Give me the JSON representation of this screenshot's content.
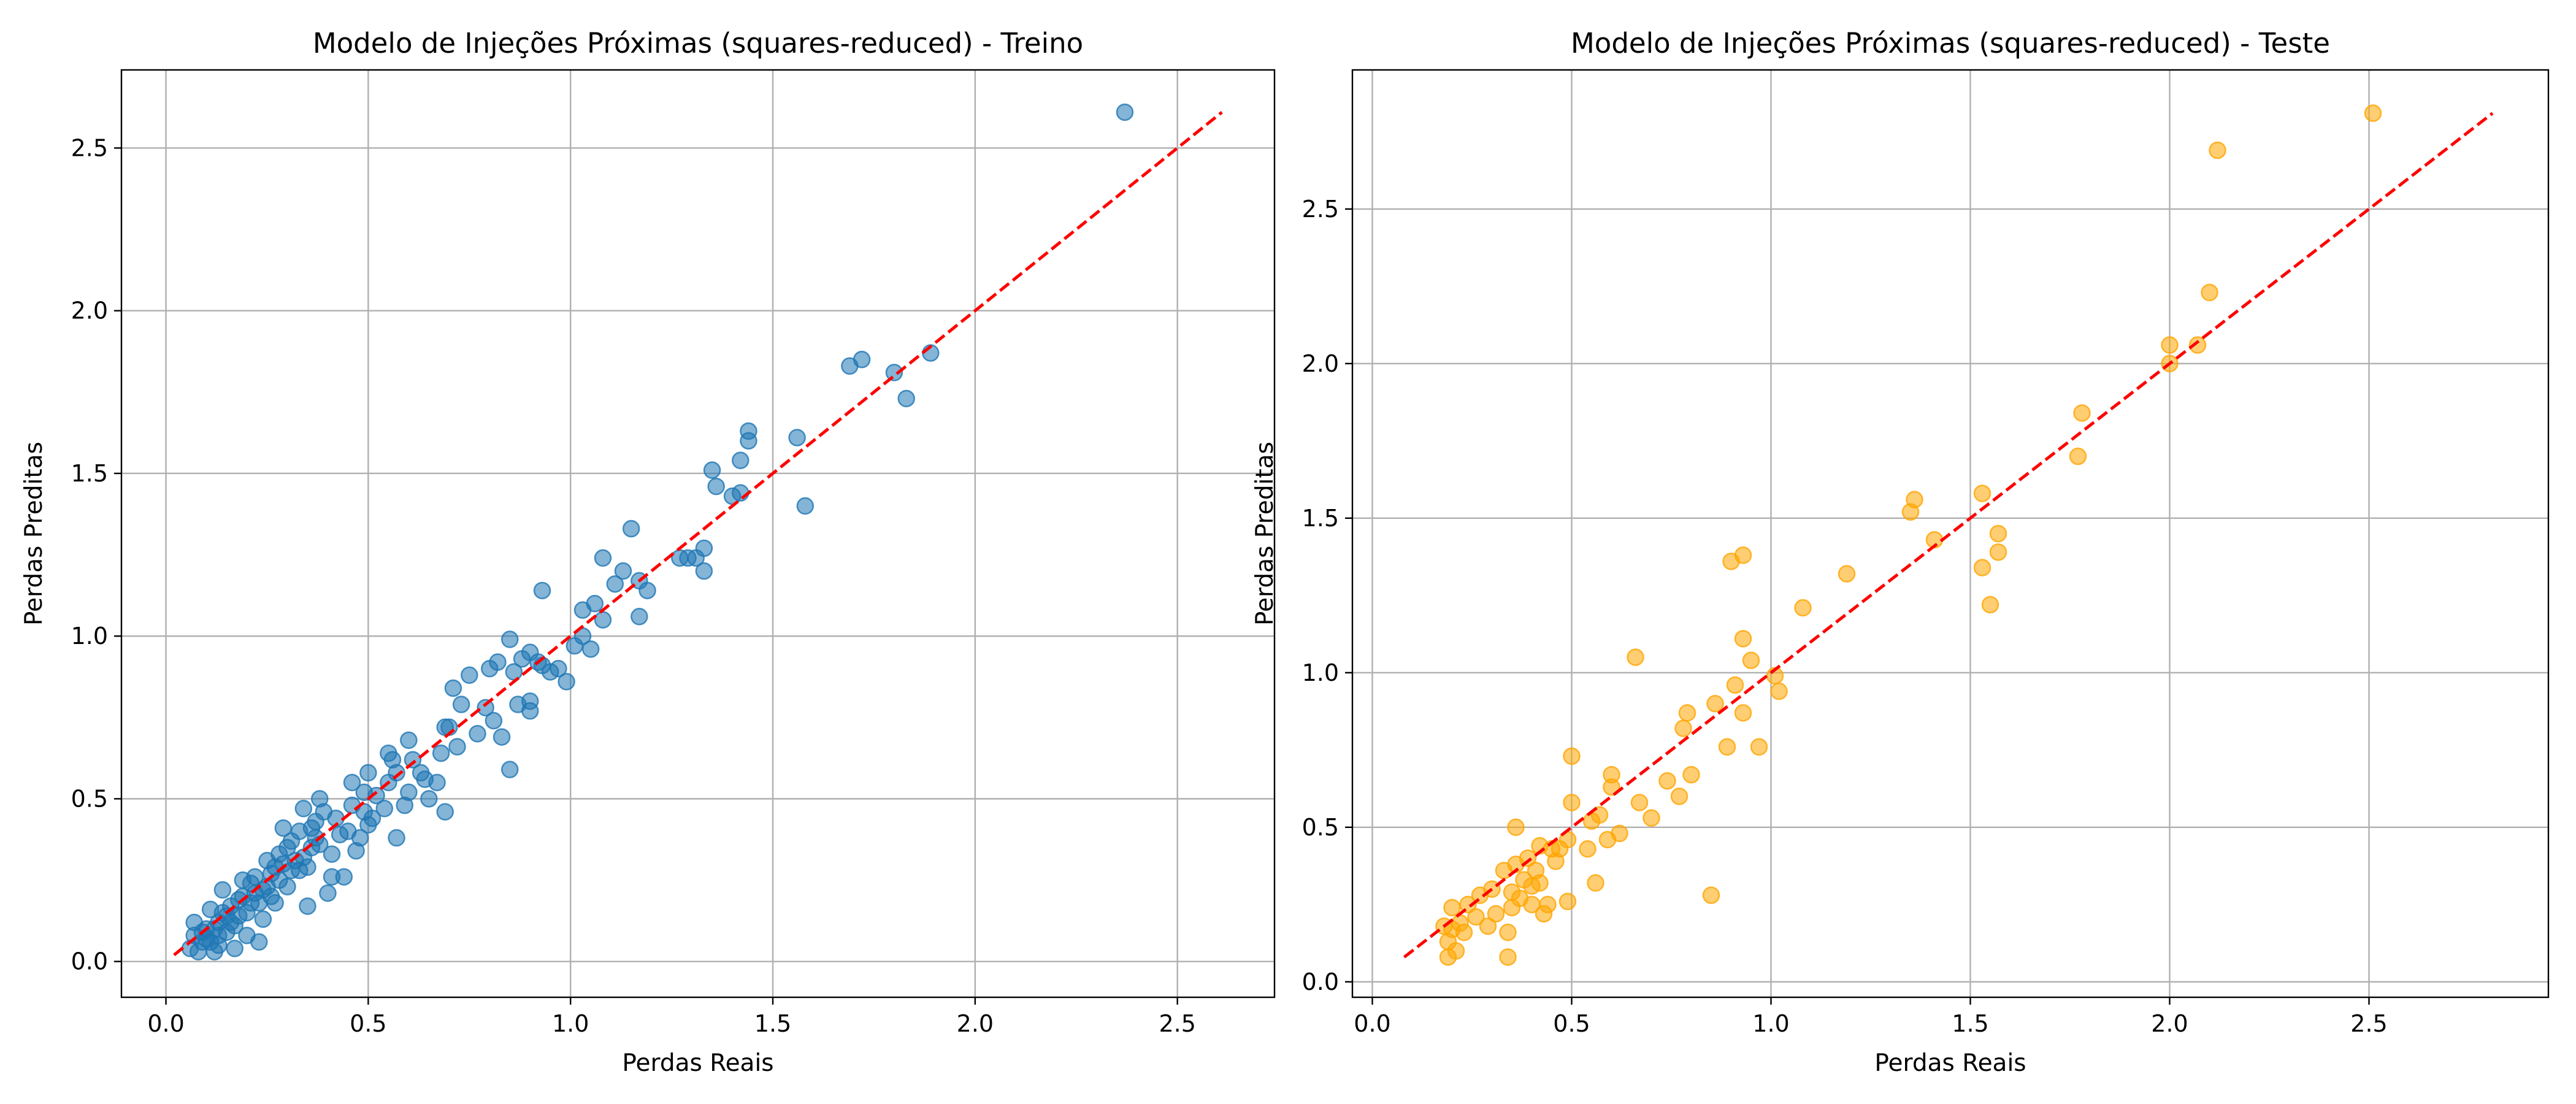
{
  "chart_data": [
    {
      "type": "scatter",
      "title": "Modelo de Injeções Próximas (squares-reduced) - Treino",
      "xlabel": "Perdas Reais",
      "ylabel": "Perdas Preditas",
      "xlim": [
        -0.11,
        2.74
      ],
      "ylim": [
        -0.11,
        2.74
      ],
      "xticks": [
        "0.0",
        "0.5",
        "1.0",
        "1.5",
        "2.0",
        "2.5"
      ],
      "yticks": [
        "0.0",
        "0.5",
        "1.0",
        "1.5",
        "2.0",
        "2.5"
      ],
      "grid": true,
      "point_color": "#1f77b4",
      "reference_line": {
        "x": [
          0.02,
          2.61
        ],
        "y": [
          0.02,
          2.61
        ],
        "color": "#ff0000",
        "style": "dashed"
      },
      "points": [
        [
          2.37,
          2.61
        ],
        [
          1.89,
          1.87
        ],
        [
          1.83,
          1.73
        ],
        [
          1.8,
          1.81
        ],
        [
          1.72,
          1.85
        ],
        [
          1.69,
          1.83
        ],
        [
          1.58,
          1.4
        ],
        [
          1.56,
          1.61
        ],
        [
          1.44,
          1.63
        ],
        [
          1.44,
          1.6
        ],
        [
          1.42,
          1.54
        ],
        [
          1.42,
          1.44
        ],
        [
          1.4,
          1.43
        ],
        [
          1.36,
          1.46
        ],
        [
          1.35,
          1.51
        ],
        [
          1.33,
          1.27
        ],
        [
          1.33,
          1.2
        ],
        [
          1.31,
          1.24
        ],
        [
          1.29,
          1.24
        ],
        [
          1.27,
          1.24
        ],
        [
          1.19,
          1.14
        ],
        [
          1.17,
          1.17
        ],
        [
          1.17,
          1.06
        ],
        [
          1.15,
          1.33
        ],
        [
          1.13,
          1.2
        ],
        [
          1.11,
          1.16
        ],
        [
          1.08,
          1.24
        ],
        [
          1.08,
          1.05
        ],
        [
          1.06,
          1.1
        ],
        [
          1.05,
          0.96
        ],
        [
          1.03,
          1.08
        ],
        [
          1.03,
          1.0
        ],
        [
          1.01,
          0.97
        ],
        [
          0.99,
          0.86
        ],
        [
          0.97,
          0.9
        ],
        [
          0.95,
          0.89
        ],
        [
          0.93,
          1.14
        ],
        [
          0.93,
          0.91
        ],
        [
          0.92,
          0.92
        ],
        [
          0.9,
          0.95
        ],
        [
          0.9,
          0.8
        ],
        [
          0.9,
          0.77
        ],
        [
          0.88,
          0.93
        ],
        [
          0.87,
          0.79
        ],
        [
          0.86,
          0.89
        ],
        [
          0.85,
          0.99
        ],
        [
          0.85,
          0.59
        ],
        [
          0.83,
          0.69
        ],
        [
          0.82,
          0.92
        ],
        [
          0.81,
          0.74
        ],
        [
          0.8,
          0.9
        ],
        [
          0.79,
          0.78
        ],
        [
          0.77,
          0.7
        ],
        [
          0.75,
          0.88
        ],
        [
          0.73,
          0.79
        ],
        [
          0.72,
          0.66
        ],
        [
          0.71,
          0.84
        ],
        [
          0.7,
          0.72
        ],
        [
          0.69,
          0.72
        ],
        [
          0.68,
          0.64
        ],
        [
          0.69,
          0.46
        ],
        [
          0.67,
          0.55
        ],
        [
          0.65,
          0.5
        ],
        [
          0.64,
          0.56
        ],
        [
          0.63,
          0.58
        ],
        [
          0.6,
          0.68
        ],
        [
          0.61,
          0.62
        ],
        [
          0.6,
          0.52
        ],
        [
          0.59,
          0.48
        ],
        [
          0.57,
          0.58
        ],
        [
          0.56,
          0.62
        ],
        [
          0.55,
          0.64
        ],
        [
          0.55,
          0.55
        ],
        [
          0.54,
          0.47
        ],
        [
          0.57,
          0.38
        ],
        [
          0.52,
          0.51
        ],
        [
          0.51,
          0.44
        ],
        [
          0.5,
          0.58
        ],
        [
          0.49,
          0.52
        ],
        [
          0.49,
          0.46
        ],
        [
          0.48,
          0.38
        ],
        [
          0.47,
          0.34
        ],
        [
          0.46,
          0.55
        ],
        [
          0.45,
          0.4
        ],
        [
          0.44,
          0.26
        ],
        [
          0.41,
          0.26
        ],
        [
          0.4,
          0.21
        ],
        [
          0.39,
          0.46
        ],
        [
          0.38,
          0.5
        ],
        [
          0.37,
          0.43
        ],
        [
          0.36,
          0.35
        ],
        [
          0.35,
          0.29
        ],
        [
          0.35,
          0.17
        ],
        [
          0.34,
          0.47
        ],
        [
          0.33,
          0.4
        ],
        [
          0.32,
          0.31
        ],
        [
          0.31,
          0.37
        ],
        [
          0.3,
          0.23
        ],
        [
          0.29,
          0.41
        ],
        [
          0.28,
          0.33
        ],
        [
          0.27,
          0.18
        ],
        [
          0.26,
          0.27
        ],
        [
          0.25,
          0.31
        ],
        [
          0.24,
          0.22
        ],
        [
          0.24,
          0.13
        ],
        [
          0.23,
          0.06
        ],
        [
          0.22,
          0.26
        ],
        [
          0.21,
          0.18
        ],
        [
          0.2,
          0.08
        ],
        [
          0.19,
          0.2
        ],
        [
          0.18,
          0.14
        ],
        [
          0.17,
          0.04
        ],
        [
          0.16,
          0.17
        ],
        [
          0.15,
          0.09
        ],
        [
          0.14,
          0.22
        ],
        [
          0.13,
          0.12
        ],
        [
          0.13,
          0.05
        ],
        [
          0.12,
          0.03
        ],
        [
          0.11,
          0.16
        ],
        [
          0.1,
          0.1
        ],
        [
          0.09,
          0.06
        ],
        [
          0.08,
          0.03
        ],
        [
          0.07,
          0.12
        ],
        [
          0.07,
          0.08
        ],
        [
          0.06,
          0.04
        ],
        [
          0.36,
          0.41
        ],
        [
          0.42,
          0.44
        ],
        [
          0.3,
          0.35
        ],
        [
          0.27,
          0.29
        ],
        [
          0.22,
          0.21
        ],
        [
          0.19,
          0.25
        ],
        [
          0.16,
          0.12
        ],
        [
          0.14,
          0.15
        ],
        [
          0.1,
          0.07
        ],
        [
          0.46,
          0.48
        ],
        [
          0.38,
          0.36
        ],
        [
          0.33,
          0.28
        ],
        [
          0.29,
          0.3
        ],
        [
          0.25,
          0.23
        ],
        [
          0.21,
          0.24
        ],
        [
          0.18,
          0.19
        ],
        [
          0.12,
          0.1
        ],
        [
          0.09,
          0.09
        ],
        [
          0.41,
          0.33
        ],
        [
          0.34,
          0.32
        ],
        [
          0.28,
          0.25
        ],
        [
          0.23,
          0.18
        ],
        [
          0.2,
          0.15
        ],
        [
          0.15,
          0.14
        ],
        [
          0.11,
          0.06
        ],
        [
          0.5,
          0.42
        ],
        [
          0.43,
          0.39
        ],
        [
          0.37,
          0.38
        ],
        [
          0.31,
          0.28
        ],
        [
          0.26,
          0.2
        ],
        [
          0.17,
          0.11
        ],
        [
          0.13,
          0.08
        ]
      ]
    },
    {
      "type": "scatter",
      "title": "Modelo de Injeções Próximas (squares-reduced) - Teste",
      "xlabel": "Perdas Reais",
      "ylabel": "Perdas Preditas",
      "xlim": [
        -0.05,
        2.95
      ],
      "ylim": [
        -0.05,
        2.95
      ],
      "xticks": [
        "0.0",
        "0.5",
        "1.0",
        "1.5",
        "2.0",
        "2.5"
      ],
      "yticks": [
        "0.0",
        "0.5",
        "1.0",
        "1.5",
        "2.0",
        "2.5"
      ],
      "grid": true,
      "point_color": "#ffa500",
      "reference_line": {
        "x": [
          0.08,
          2.81
        ],
        "y": [
          0.08,
          2.81
        ],
        "color": "#ff0000",
        "style": "dashed"
      },
      "points": [
        [
          2.51,
          2.81
        ],
        [
          2.12,
          2.69
        ],
        [
          2.1,
          2.23
        ],
        [
          2.07,
          2.06
        ],
        [
          2.0,
          2.06
        ],
        [
          2.0,
          2.0
        ],
        [
          1.78,
          1.84
        ],
        [
          1.77,
          1.7
        ],
        [
          1.57,
          1.45
        ],
        [
          1.57,
          1.39
        ],
        [
          1.53,
          1.58
        ],
        [
          1.53,
          1.34
        ],
        [
          1.55,
          1.22
        ],
        [
          1.41,
          1.43
        ],
        [
          1.36,
          1.56
        ],
        [
          1.35,
          1.52
        ],
        [
          1.19,
          1.32
        ],
        [
          1.08,
          1.21
        ],
        [
          1.02,
          0.94
        ],
        [
          1.01,
          0.99
        ],
        [
          0.97,
          0.76
        ],
        [
          0.95,
          1.04
        ],
        [
          0.93,
          1.38
        ],
        [
          0.93,
          1.11
        ],
        [
          0.93,
          0.87
        ],
        [
          0.91,
          0.96
        ],
        [
          0.9,
          1.36
        ],
        [
          0.89,
          0.76
        ],
        [
          0.86,
          0.9
        ],
        [
          0.85,
          0.28
        ],
        [
          0.8,
          0.67
        ],
        [
          0.79,
          0.87
        ],
        [
          0.77,
          0.6
        ],
        [
          0.78,
          0.82
        ],
        [
          0.74,
          0.65
        ],
        [
          0.7,
          0.53
        ],
        [
          0.67,
          0.58
        ],
        [
          0.66,
          1.05
        ],
        [
          0.62,
          0.48
        ],
        [
          0.6,
          0.67
        ],
        [
          0.6,
          0.63
        ],
        [
          0.59,
          0.46
        ],
        [
          0.57,
          0.54
        ],
        [
          0.55,
          0.52
        ],
        [
          0.56,
          0.32
        ],
        [
          0.54,
          0.43
        ],
        [
          0.5,
          0.73
        ],
        [
          0.5,
          0.58
        ],
        [
          0.49,
          0.46
        ],
        [
          0.49,
          0.26
        ],
        [
          0.47,
          0.43
        ],
        [
          0.45,
          0.43
        ],
        [
          0.44,
          0.25
        ],
        [
          0.42,
          0.44
        ],
        [
          0.42,
          0.32
        ],
        [
          0.41,
          0.36
        ],
        [
          0.4,
          0.25
        ],
        [
          0.39,
          0.4
        ],
        [
          0.38,
          0.33
        ],
        [
          0.36,
          0.5
        ],
        [
          0.36,
          0.38
        ],
        [
          0.35,
          0.29
        ],
        [
          0.35,
          0.24
        ],
        [
          0.34,
          0.16
        ],
        [
          0.34,
          0.08
        ],
        [
          0.33,
          0.36
        ],
        [
          0.31,
          0.22
        ],
        [
          0.29,
          0.18
        ],
        [
          0.27,
          0.28
        ],
        [
          0.26,
          0.21
        ],
        [
          0.24,
          0.25
        ],
        [
          0.22,
          0.19
        ],
        [
          0.21,
          0.1
        ],
        [
          0.2,
          0.24
        ],
        [
          0.2,
          0.17
        ],
        [
          0.19,
          0.13
        ],
        [
          0.19,
          0.08
        ],
        [
          0.18,
          0.18
        ],
        [
          0.23,
          0.16
        ],
        [
          0.43,
          0.22
        ],
        [
          0.4,
          0.31
        ],
        [
          0.37,
          0.27
        ],
        [
          0.46,
          0.39
        ],
        [
          0.3,
          0.3
        ]
      ]
    }
  ]
}
